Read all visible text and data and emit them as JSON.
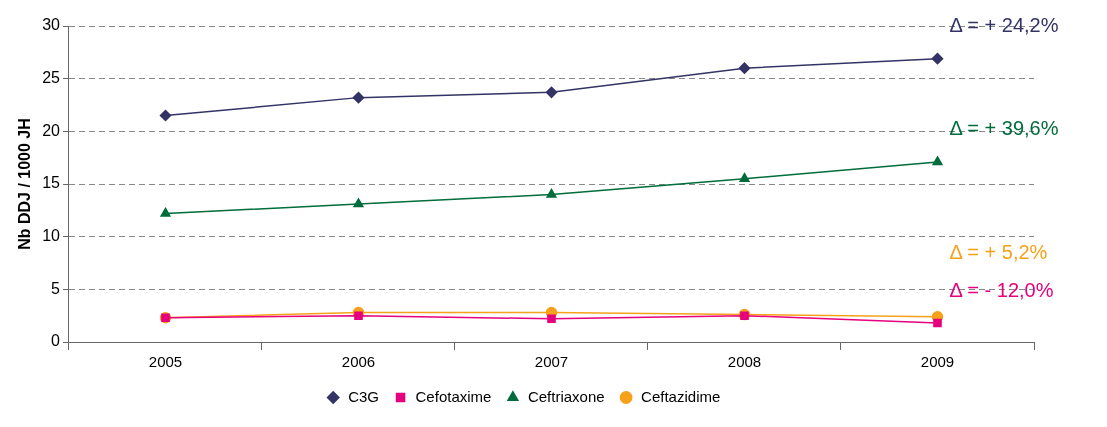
{
  "chart_data": {
    "type": "line",
    "ylabel": "Nb DDJ / 1000 JH",
    "categories": [
      "2005",
      "2006",
      "2007",
      "2008",
      "2009"
    ],
    "series": [
      {
        "name": "C3G",
        "color": "#333366",
        "marker": "diamond",
        "values": [
          21.5,
          23.2,
          23.7,
          26.0,
          26.9
        ]
      },
      {
        "name": "Cefotaxime",
        "color": "#e6007e",
        "marker": "square",
        "values": [
          2.3,
          2.5,
          2.2,
          2.5,
          1.8
        ]
      },
      {
        "name": "Ceftriaxone",
        "color": "#006c3b",
        "marker": "triangle",
        "values": [
          12.2,
          13.1,
          14.0,
          15.5,
          17.1
        ]
      },
      {
        "name": "Ceftazidime",
        "color": "#f7a11a",
        "marker": "circle",
        "values": [
          2.3,
          2.8,
          2.8,
          2.6,
          2.4
        ]
      }
    ],
    "annotations": [
      "Δ = + 24,2%",
      "Δ = - 12,0%",
      "Δ = + 39,6%",
      "Δ = + 5,2%"
    ],
    "ylim": [
      0,
      30
    ],
    "yticks": [
      0,
      5,
      10,
      15,
      20,
      25,
      30
    ],
    "grid": "y",
    "legend": "bottom",
    "line_style": "solid"
  }
}
